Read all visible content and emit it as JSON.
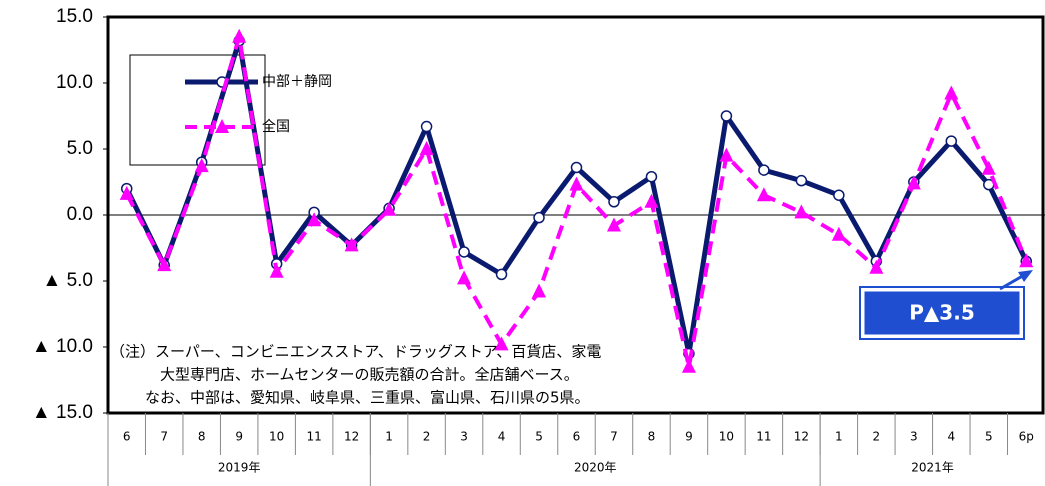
{
  "chart_data": {
    "type": "line",
    "categories": [
      "6",
      "7",
      "8",
      "9",
      "10",
      "11",
      "12",
      "1",
      "2",
      "3",
      "4",
      "5",
      "6",
      "7",
      "8",
      "9",
      "10",
      "11",
      "12",
      "1",
      "2",
      "3",
      "4",
      "5",
      "6p"
    ],
    "year_groups": [
      {
        "label": "2019年",
        "span": 7
      },
      {
        "label": "2020年",
        "span": 12
      },
      {
        "label": "2021年",
        "span": 6
      }
    ],
    "series": [
      {
        "name": "中部＋静岡",
        "color": "#0a1a6e",
        "values": [
          2.0,
          -3.8,
          4.0,
          13.2,
          -3.7,
          0.2,
          -2.3,
          0.5,
          6.7,
          -2.8,
          -4.5,
          -0.2,
          3.6,
          1.0,
          2.9,
          -10.5,
          7.5,
          3.4,
          2.6,
          1.5,
          -3.5,
          2.5,
          5.6,
          2.3,
          -3.5
        ]
      },
      {
        "name": "全国",
        "color": "#ff00ff",
        "values": [
          1.6,
          -3.8,
          3.7,
          13.5,
          -4.3,
          -0.4,
          -2.3,
          0.4,
          5.0,
          -4.8,
          -9.8,
          -5.8,
          2.3,
          -0.8,
          1.0,
          -11.5,
          4.5,
          1.5,
          0.2,
          -1.5,
          -4.0,
          2.4,
          9.2,
          3.5,
          -3.5
        ]
      }
    ],
    "ylim": [
      -15,
      15
    ],
    "yticks": [
      {
        "value": 15,
        "label": "15.0"
      },
      {
        "value": 10,
        "label": "10.0"
      },
      {
        "value": 5,
        "label": "5.0"
      },
      {
        "value": 0,
        "label": "0.0"
      },
      {
        "value": -5,
        "label": "▲ 5.0"
      },
      {
        "value": -10,
        "label": "▲ 10.0"
      },
      {
        "value": -15,
        "label": "▲ 15.0"
      }
    ],
    "note": [
      "（注）スーパー、コンビニエンスストア、ドラッグストア、百貨店、家電",
      "大型専門店、ホームセンターの販売額の合計。全店舗ベース。",
      "なお、中部は、愛知県、岐阜県、三重県、富山県、石川県の5県。"
    ],
    "callout": "P▲3.5"
  }
}
